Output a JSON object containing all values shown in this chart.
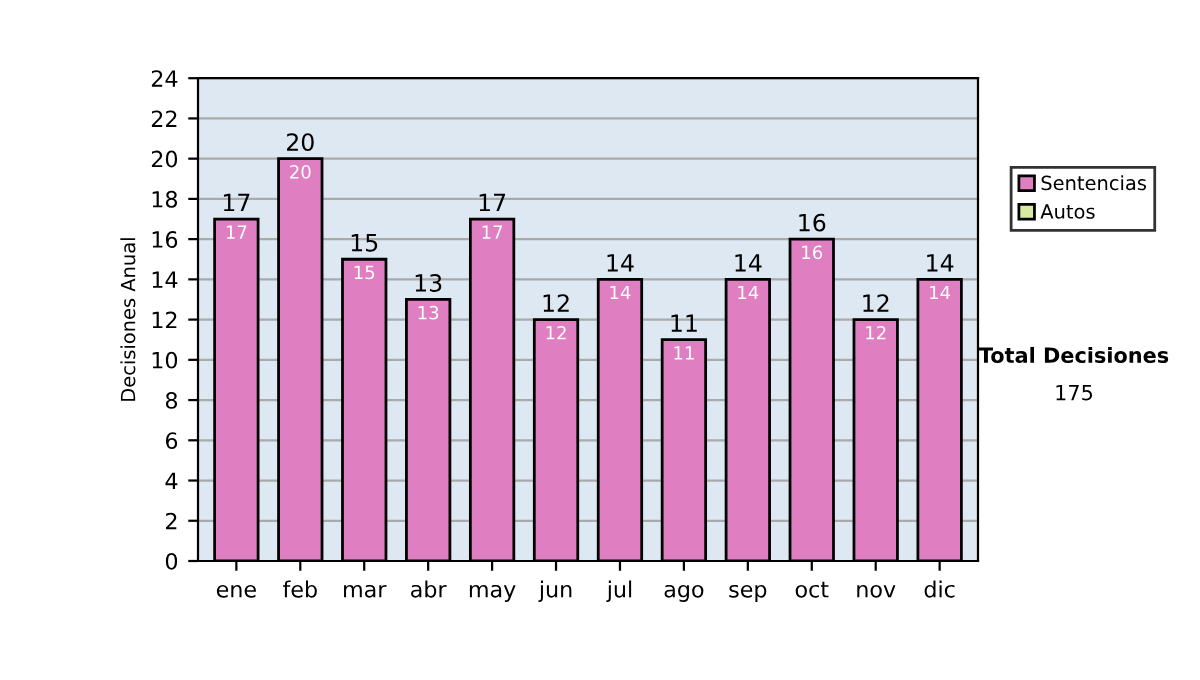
{
  "chart_data": {
    "type": "bar",
    "ylabel": "Decisiones Anual",
    "categories": [
      "ene",
      "feb",
      "mar",
      "abr",
      "may",
      "jun",
      "jul",
      "ago",
      "sep",
      "oct",
      "nov",
      "dic"
    ],
    "series": [
      {
        "name": "Sentencias",
        "color": "#df7fc2",
        "values": [
          17,
          20,
          15,
          13,
          17,
          12,
          14,
          11,
          14,
          16,
          12,
          14
        ]
      },
      {
        "name": "Autos",
        "color": "#d8eaa0",
        "values": [
          null,
          null,
          null,
          null,
          null,
          null,
          null,
          null,
          null,
          null,
          null,
          null
        ]
      }
    ],
    "stacked": true,
    "data_labels": true,
    "totals": [
      "17",
      "20",
      "15",
      "13",
      "17",
      "12",
      "14",
      "11",
      "14",
      "16",
      "12",
      "14"
    ],
    "ylim": [
      0,
      24
    ],
    "yticks": [
      0,
      2,
      4,
      6,
      8,
      10,
      12,
      14,
      16,
      18,
      20,
      22,
      24
    ],
    "grid": "y",
    "legend": "right",
    "annotations": [
      "Total Decisiones",
      "175"
    ]
  }
}
